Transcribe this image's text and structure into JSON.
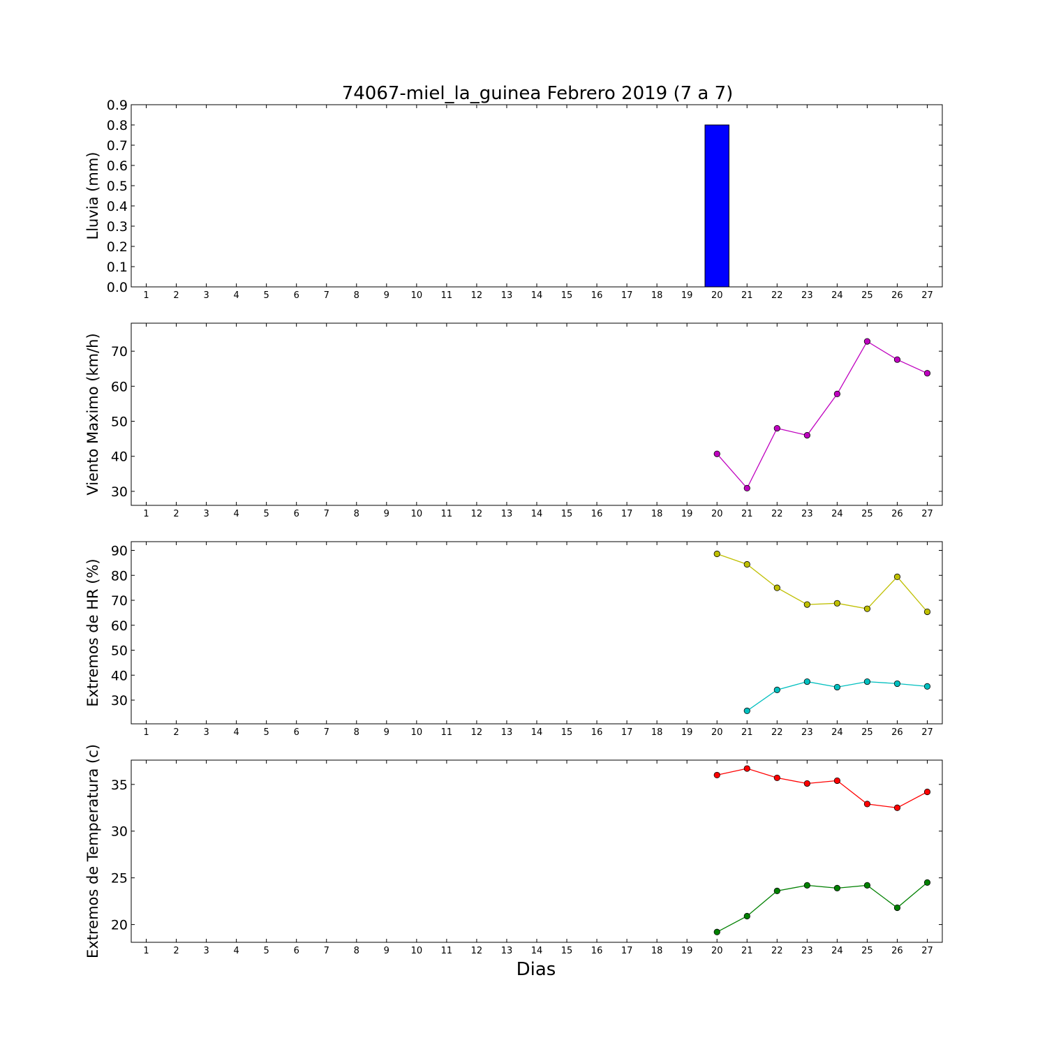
{
  "chart_data": {
    "title": "74067-miel_la_guinea Febrero 2019  (7 a 7)",
    "xlabel": "Dias",
    "categories": [
      "1",
      "2",
      "3",
      "4",
      "5",
      "6",
      "7",
      "8",
      "9",
      "10",
      "11",
      "12",
      "13",
      "14",
      "15",
      "16",
      "17",
      "18",
      "19",
      "20",
      "21",
      "22",
      "23",
      "24",
      "25",
      "26",
      "27"
    ],
    "panels": [
      {
        "type": "bar",
        "ylabel": "Lluvia (mm)",
        "ylim": [
          0,
          0.9
        ],
        "yticks": [
          0.0,
          0.1,
          0.2,
          0.3,
          0.4,
          0.5,
          0.6,
          0.7,
          0.8,
          0.9
        ],
        "ytick_labels": [
          "0.0",
          "0.1",
          "0.2",
          "0.3",
          "0.4",
          "0.5",
          "0.6",
          "0.7",
          "0.8",
          "0.9"
        ],
        "series": [
          {
            "color": "#0000ff",
            "values": [
              null,
              null,
              null,
              null,
              null,
              null,
              null,
              null,
              null,
              null,
              null,
              null,
              null,
              null,
              null,
              null,
              null,
              null,
              null,
              0.8,
              0,
              0,
              0,
              0,
              0,
              0,
              0
            ]
          }
        ]
      },
      {
        "type": "line",
        "ylabel": "Viento Maximo (km/h)",
        "ylim": [
          26,
          78
        ],
        "yticks": [
          30,
          40,
          50,
          60,
          70
        ],
        "ytick_labels": [
          "30",
          "40",
          "50",
          "60",
          "70"
        ],
        "series": [
          {
            "color": "#bf00bf",
            "values": [
              null,
              null,
              null,
              null,
              null,
              null,
              null,
              null,
              null,
              null,
              null,
              null,
              null,
              null,
              null,
              null,
              null,
              null,
              null,
              40.7,
              30.9,
              48.0,
              46.0,
              57.8,
              72.8,
              67.6,
              63.7
            ]
          }
        ]
      },
      {
        "type": "line",
        "ylabel": "Extremos de HR (%)",
        "ylim": [
          20.5,
          93.5
        ],
        "yticks": [
          30,
          40,
          50,
          60,
          70,
          80,
          90
        ],
        "ytick_labels": [
          "30",
          "40",
          "50",
          "60",
          "70",
          "80",
          "90"
        ],
        "series": [
          {
            "color": "#bfbf00",
            "values": [
              null,
              null,
              null,
              null,
              null,
              null,
              null,
              null,
              null,
              null,
              null,
              null,
              null,
              null,
              null,
              null,
              null,
              null,
              null,
              88.6,
              84.4,
              75.0,
              68.3,
              68.8,
              66.6,
              79.4,
              65.4
            ]
          },
          {
            "color": "#00bfbf",
            "values": [
              null,
              null,
              null,
              null,
              null,
              null,
              null,
              null,
              null,
              null,
              null,
              null,
              null,
              null,
              null,
              null,
              null,
              null,
              null,
              null,
              25.7,
              34.1,
              37.4,
              35.2,
              37.4,
              36.6,
              35.5
            ]
          }
        ]
      },
      {
        "type": "line",
        "ylabel": "Extremos de Temperatura (c)",
        "ylim": [
          18.1,
          37.6
        ],
        "yticks": [
          20,
          25,
          30,
          35
        ],
        "ytick_labels": [
          "20",
          "25",
          "30",
          "35"
        ],
        "series": [
          {
            "color": "#ff0000",
            "values": [
              null,
              null,
              null,
              null,
              null,
              null,
              null,
              null,
              null,
              null,
              null,
              null,
              null,
              null,
              null,
              null,
              null,
              null,
              null,
              36.0,
              36.7,
              35.7,
              35.1,
              35.4,
              32.9,
              32.5,
              34.2
            ]
          },
          {
            "color": "#008000",
            "values": [
              null,
              null,
              null,
              null,
              null,
              null,
              null,
              null,
              null,
              null,
              null,
              null,
              null,
              null,
              null,
              null,
              null,
              null,
              null,
              19.2,
              20.9,
              23.6,
              24.2,
              23.9,
              24.2,
              21.8,
              24.5
            ]
          }
        ]
      }
    ]
  }
}
